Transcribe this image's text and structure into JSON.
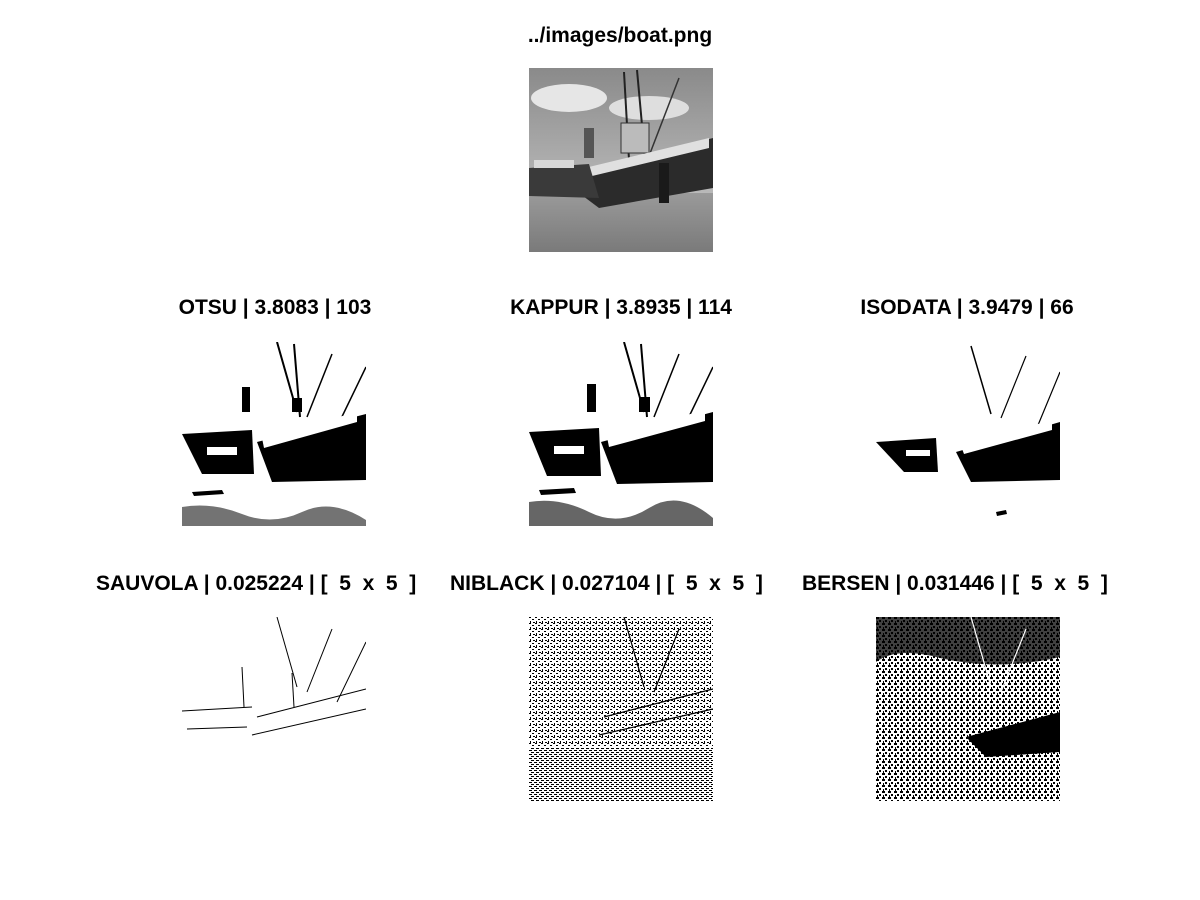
{
  "figure": {
    "source": {
      "title": "../images/boat.png"
    },
    "panels": [
      {
        "id": "otsu",
        "title": "OTSU | 3.8083 | 103"
      },
      {
        "id": "kappur",
        "title": "KAPPUR | 3.8935 | 114"
      },
      {
        "id": "isodata",
        "title": "ISODATA | 3.9479 | 66"
      },
      {
        "id": "sauvola",
        "title": "SAUVOLA | 0.025224 | [  5  x  5  ]"
      },
      {
        "id": "niblack",
        "title": "NIBLACK | 0.027104 | [  5  x  5  ]"
      },
      {
        "id": "bersen",
        "title": "BERSEN | 0.031446 | [  5  x  5  ]"
      }
    ]
  }
}
